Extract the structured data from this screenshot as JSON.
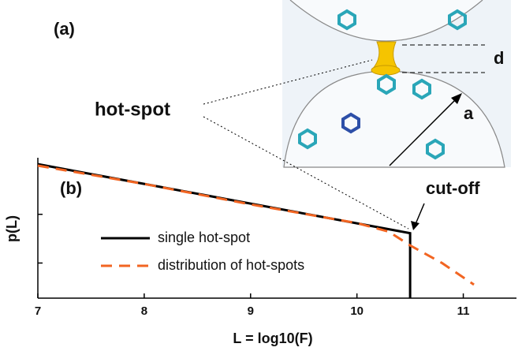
{
  "chart_data": {
    "type": "line",
    "panel_a_label": "(a)",
    "panel_b_label": "(b)",
    "xlabel": "L = log10(F)",
    "ylabel": "p(L)",
    "annotations": {
      "hot_spot": "hot-spot",
      "cut_off": "cut-off",
      "gap": "d",
      "radius": "a"
    },
    "xlim": [
      7,
      11.5
    ],
    "xticks": [
      7,
      8,
      9,
      10,
      11
    ],
    "ylog": true,
    "ylim": [
      0.0019,
      1.45
    ],
    "yticks": [
      0.01,
      0.1,
      1
    ],
    "series": [
      {
        "name": "single hot-spot",
        "color": "#000000",
        "dash": false,
        "x": [
          7,
          10.5,
          10.5
        ],
        "values": [
          1.07,
          0.041,
          0.0019
        ]
      },
      {
        "name": "distribution of hot-spots",
        "color": "#f26522",
        "dash": true,
        "x": [
          7,
          8,
          9,
          10,
          10.3,
          10.5,
          10.8,
          11.1
        ],
        "values": [
          1.0,
          0.42,
          0.16,
          0.066,
          0.044,
          0.023,
          0.01,
          0.0036
        ]
      }
    ]
  }
}
